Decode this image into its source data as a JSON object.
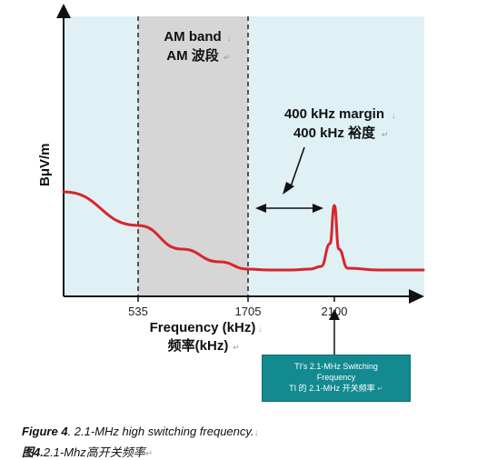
{
  "chart_data": {
    "type": "line",
    "ylabel": "BμV/m",
    "xlabel_en": "Frequency (kHz)",
    "xlabel_cn": "频率(kHz)",
    "x_ticks": [
      "535",
      "1705",
      "2100"
    ],
    "band": {
      "start": 535,
      "end": 1705,
      "label_en": "AM band",
      "label_cn": "AM 波段"
    },
    "margin": {
      "start": 1705,
      "end": 2100,
      "label_en": "400 kHz margin",
      "label_cn": "400 kHz 裕度"
    },
    "series": [
      {
        "color": "#d7262d",
        "x": [
          0,
          535,
          1000,
          1400,
          1705,
          1800,
          1900,
          1990,
          2040,
          2080,
          2100,
          2120,
          2160,
          2300,
          2500
        ],
        "y": [
          115,
          78,
          52,
          38,
          30,
          29,
          29,
          30,
          33,
          58,
          100,
          52,
          31,
          29,
          29
        ]
      }
    ],
    "grid": false,
    "colors": {
      "plot_bg": "#dff1f5",
      "band_bg": "#d6d6d6",
      "axis": "#111111"
    }
  },
  "callout": {
    "line1": "TI's 2.1-MHz Switching",
    "line2": "Frequency",
    "line3": "TI 的 2.1-MHz 开关频率",
    "bg": "#128a8f"
  },
  "caption": {
    "prefix_en": "Figure 4",
    "text_en": ". 2.1-MHz high switching frequency.",
    "prefix_cn": "图4.",
    "text_cn": "2.1-Mhz高开关频率"
  },
  "icons": {
    "paragraph_mark": "↓",
    "return_mark": "↵"
  }
}
